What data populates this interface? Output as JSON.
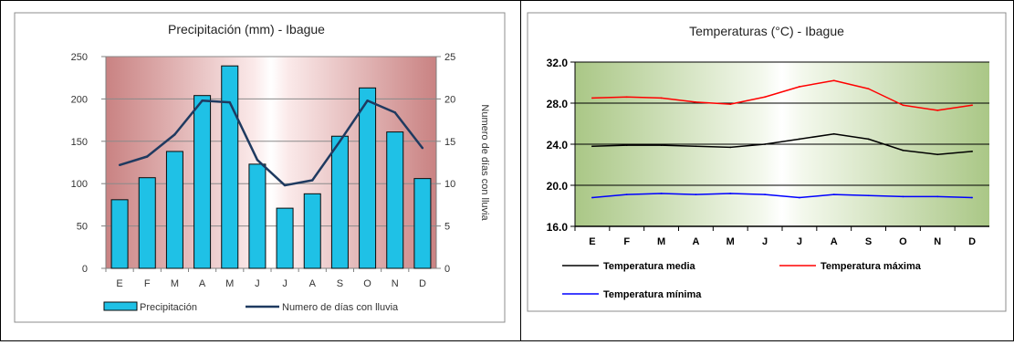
{
  "chart_data": [
    {
      "type": "bar",
      "title": "Precipitación (mm) - Ibague",
      "categories": [
        "E",
        "F",
        "M",
        "A",
        "M",
        "J",
        "J",
        "A",
        "S",
        "O",
        "N",
        "D"
      ],
      "ylim": [
        0,
        250
      ],
      "yticks": [
        0,
        50,
        100,
        150,
        200,
        250
      ],
      "y2lim": [
        0,
        25
      ],
      "y2ticks": [
        0,
        5,
        10,
        15,
        20,
        25
      ],
      "y2label": "Numero de días con lluvia",
      "legend_position": "bottom",
      "background": "red-to-white horizontal gradient",
      "grid": true,
      "series": [
        {
          "name": "Precipitación",
          "type": "bar",
          "axis": "left",
          "color": "#1fc1e6",
          "values": [
            81,
            107,
            138,
            204,
            239,
            123,
            71,
            88,
            156,
            213,
            161,
            106
          ]
        },
        {
          "name": "Numero de días con lluvia",
          "type": "line",
          "axis": "right",
          "color": "#1f3a60",
          "values": [
            12.2,
            13.2,
            15.8,
            19.8,
            19.6,
            12.8,
            9.8,
            10.4,
            15.0,
            19.8,
            18.4,
            14.2
          ]
        }
      ]
    },
    {
      "type": "line",
      "title": "Temperaturas (°C) - Ibague",
      "categories": [
        "E",
        "F",
        "M",
        "A",
        "M",
        "J",
        "J",
        "A",
        "S",
        "O",
        "N",
        "D"
      ],
      "ylim": [
        16.0,
        32.0
      ],
      "yticks": [
        "16.0",
        "20.0",
        "24.0",
        "28.0",
        "32.0"
      ],
      "legend_position": "bottom",
      "background": "green-to-white horizontal gradient",
      "grid": true,
      "series": [
        {
          "name": "Temperatura media",
          "color": "#000000",
          "values": [
            23.8,
            23.9,
            23.9,
            23.8,
            23.7,
            24.0,
            24.5,
            25.0,
            24.5,
            23.4,
            23.0,
            23.3
          ]
        },
        {
          "name": "Temperatura máxima",
          "color": "#ff0000",
          "values": [
            28.5,
            28.6,
            28.5,
            28.1,
            27.9,
            28.6,
            29.6,
            30.2,
            29.4,
            27.8,
            27.3,
            27.8
          ]
        },
        {
          "name": "Temperatura mínima",
          "color": "#0000ff",
          "values": [
            18.8,
            19.1,
            19.2,
            19.1,
            19.2,
            19.1,
            18.8,
            19.1,
            19.0,
            18.9,
            18.9,
            18.8
          ]
        }
      ]
    }
  ]
}
